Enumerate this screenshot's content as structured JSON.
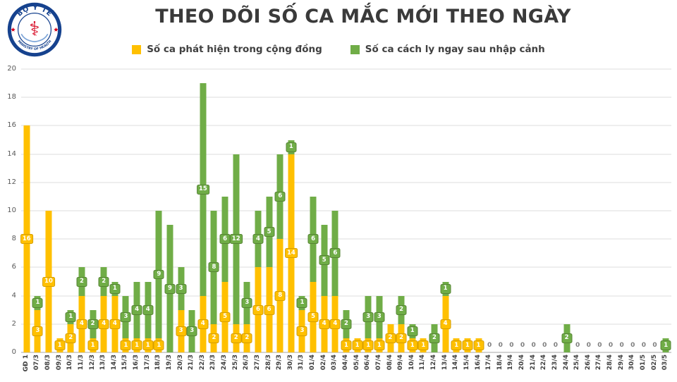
{
  "header": {
    "title": "THEO DÕI SỐ CA MẮC MỚI THEO NGÀY",
    "logo": {
      "top_text": "BỘ Y TẾ",
      "bottom_text": "MINISTRY OF HEALTH",
      "ring_color": "#16428e",
      "symbol_color": "#d6001c",
      "symbol_glyph": "⚕"
    }
  },
  "legend": {
    "items": [
      {
        "label": "Số ca phát hiện trong cộng đồng",
        "color": "#FFC000"
      },
      {
        "label": "Số ca cách ly ngay sau nhập cảnh",
        "color": "#70AD47"
      }
    ]
  },
  "chart_data": {
    "type": "bar",
    "stacked": true,
    "title": "THEO DÕI SỐ CA MẮC MỚI THEO NGÀY",
    "xlabel": "",
    "ylabel": "",
    "ylim": [
      0,
      20
    ],
    "yticks": [
      0,
      2,
      4,
      6,
      8,
      10,
      12,
      14,
      16,
      18,
      20
    ],
    "grid": true,
    "legend_position": "top",
    "zero_label": "0",
    "categories": [
      "GĐ 1",
      "07/3",
      "08/3",
      "09/3",
      "10/3",
      "11/3",
      "12/3",
      "13/3",
      "14/3",
      "15/3",
      "16/3",
      "17/3",
      "18/3",
      "19/3",
      "20/3",
      "21/3",
      "22/3",
      "23/3",
      "24/3",
      "25/3",
      "26/3",
      "27/3",
      "28/3",
      "29/3",
      "30/3",
      "31/3",
      "01/4",
      "02/4",
      "03/4",
      "04/4",
      "05/4",
      "06/4",
      "07/4",
      "08/4",
      "09/4",
      "10/4",
      "11/4",
      "12/4",
      "13/4",
      "14/4",
      "15/4",
      "16/4",
      "17/4",
      "18/4",
      "19/4",
      "20/4",
      "21/4",
      "22/4",
      "23/4",
      "24/4",
      "25/4",
      "26/4",
      "27/4",
      "28/4",
      "29/4",
      "30/4",
      "01/5",
      "02/5",
      "03/5"
    ],
    "series": [
      {
        "name": "Số ca phát hiện trong cộng đồng",
        "color": "#FFC000",
        "badge_border": "#d69e00",
        "values": [
          16,
          3,
          10,
          1,
          2,
          4,
          1,
          4,
          4,
          1,
          1,
          1,
          1,
          0,
          3,
          0,
          4,
          2,
          5,
          2,
          2,
          6,
          6,
          8,
          14,
          3,
          5,
          4,
          4,
          1,
          1,
          1,
          1,
          2,
          2,
          1,
          1,
          0,
          4,
          1,
          1,
          1,
          0,
          0,
          0,
          0,
          0,
          0,
          0,
          0,
          0,
          0,
          0,
          0,
          0,
          0,
          0,
          0,
          0
        ]
      },
      {
        "name": "Số ca cách ly ngay sau nhập cảnh",
        "color": "#70AD47",
        "badge_border": "#568434",
        "values": [
          0,
          1,
          0,
          0,
          1,
          2,
          2,
          2,
          1,
          3,
          4,
          4,
          9,
          9,
          3,
          3,
          15,
          8,
          6,
          12,
          3,
          4,
          5,
          6,
          1,
          1,
          6,
          5,
          6,
          2,
          0,
          3,
          3,
          0,
          2,
          1,
          0,
          2,
          1,
          0,
          0,
          0,
          0,
          0,
          0,
          0,
          0,
          0,
          0,
          2,
          0,
          0,
          0,
          0,
          0,
          0,
          0,
          0,
          1
        ]
      }
    ]
  }
}
